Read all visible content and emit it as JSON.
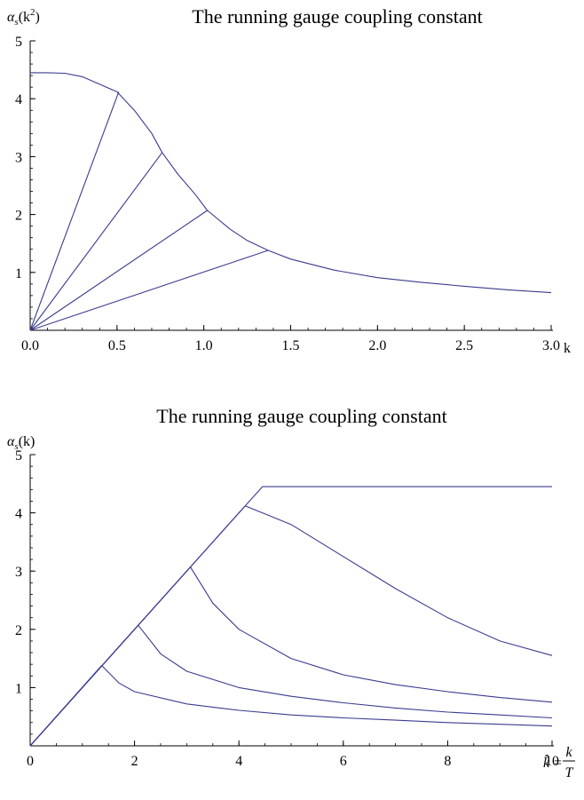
{
  "chart_data": [
    {
      "type": "line",
      "title": "The running gauge coupling constant",
      "ylabel": "α_s(k²)",
      "ylabel_parts": {
        "alpha": "α",
        "sub": "s",
        "open": "(k",
        "sup": "2",
        "close": ")"
      },
      "xlabel": "k",
      "xlim": [
        0,
        3
      ],
      "ylim": [
        0,
        5
      ],
      "xticks": [
        0,
        0.5,
        1,
        1.5,
        2,
        2.5,
        3
      ],
      "xtick_labels": [
        "0.0",
        "0.5",
        "1.0",
        "1.5",
        "2.0",
        "2.5",
        "3.0"
      ],
      "yticks": [
        1,
        2,
        3,
        4,
        5
      ],
      "ytick_labels": [
        "1",
        "2",
        "3",
        "4",
        "5"
      ],
      "line_color": "#3b3b8f",
      "series": [
        {
          "values": [
            [
              0,
              4.45
            ],
            [
              0.1,
              4.45
            ],
            [
              0.2,
              4.44
            ],
            [
              0.3,
              4.38
            ],
            [
              0.4,
              4.25
            ],
            [
              0.5,
              4.12
            ],
            [
              0.6,
              3.8
            ],
            [
              0.7,
              3.4
            ],
            [
              0.76,
              3.07
            ],
            [
              0.85,
              2.7
            ],
            [
              0.95,
              2.35
            ],
            [
              1.02,
              2.07
            ],
            [
              1.15,
              1.75
            ],
            [
              1.25,
              1.55
            ],
            [
              1.37,
              1.38
            ],
            [
              1.5,
              1.23
            ],
            [
              1.75,
              1.04
            ],
            [
              2.0,
              0.91
            ],
            [
              2.25,
              0.83
            ],
            [
              2.5,
              0.76
            ],
            [
              2.75,
              0.7
            ],
            [
              3.0,
              0.65
            ]
          ]
        },
        {
          "values": [
            [
              0,
              0
            ],
            [
              0.51,
              4.12
            ]
          ]
        },
        {
          "values": [
            [
              0,
              0
            ],
            [
              0.76,
              3.07
            ]
          ]
        },
        {
          "values": [
            [
              0,
              0
            ],
            [
              1.02,
              2.07
            ]
          ]
        },
        {
          "values": [
            [
              0,
              0
            ],
            [
              1.37,
              1.38
            ]
          ]
        }
      ]
    },
    {
      "type": "line",
      "title": "The running gauge coupling constant",
      "ylabel": "α_s(k)",
      "ylabel_parts": {
        "alpha": "α",
        "sub": "s",
        "rest": "(k)"
      },
      "xlabel": "k̂=k/T",
      "xlabel_parts": {
        "hat": "k̂",
        "eq": "=",
        "num": "k",
        "den": "T"
      },
      "xlim": [
        0,
        10
      ],
      "ylim": [
        0,
        5
      ],
      "xticks": [
        0,
        2,
        4,
        6,
        8,
        10
      ],
      "xtick_labels": [
        "0",
        "2",
        "4",
        "6",
        "8",
        "10"
      ],
      "yticks": [
        1,
        2,
        3,
        4,
        5
      ],
      "ytick_labels": [
        "1",
        "2",
        "3",
        "4",
        "5"
      ],
      "line_color": "#3b3b8f",
      "series": [
        {
          "values": [
            [
              0,
              0
            ],
            [
              4.45,
              4.45
            ],
            [
              10,
              4.45
            ]
          ]
        },
        {
          "values": [
            [
              0,
              0
            ],
            [
              4.12,
              4.12
            ],
            [
              5,
              3.8
            ],
            [
              6,
              3.25
            ],
            [
              7,
              2.7
            ],
            [
              8,
              2.2
            ],
            [
              9,
              1.8
            ],
            [
              10,
              1.55
            ]
          ]
        },
        {
          "values": [
            [
              0,
              0
            ],
            [
              3.07,
              3.07
            ],
            [
              3.5,
              2.45
            ],
            [
              4,
              2.0
            ],
            [
              5,
              1.5
            ],
            [
              6,
              1.22
            ],
            [
              7,
              1.05
            ],
            [
              8,
              0.93
            ],
            [
              9,
              0.83
            ],
            [
              10,
              0.75
            ]
          ]
        },
        {
          "values": [
            [
              0,
              0
            ],
            [
              2.07,
              2.07
            ],
            [
              2.5,
              1.58
            ],
            [
              3,
              1.28
            ],
            [
              4,
              1.0
            ],
            [
              5,
              0.85
            ],
            [
              6,
              0.74
            ],
            [
              7,
              0.65
            ],
            [
              8,
              0.58
            ],
            [
              9,
              0.53
            ],
            [
              10,
              0.48
            ]
          ]
        },
        {
          "values": [
            [
              0,
              0
            ],
            [
              1.37,
              1.38
            ],
            [
              1.7,
              1.08
            ],
            [
              2,
              0.93
            ],
            [
              3,
              0.72
            ],
            [
              4,
              0.61
            ],
            [
              5,
              0.53
            ],
            [
              6,
              0.48
            ],
            [
              7,
              0.44
            ],
            [
              8,
              0.4
            ],
            [
              9,
              0.37
            ],
            [
              10,
              0.34
            ]
          ]
        }
      ]
    }
  ]
}
